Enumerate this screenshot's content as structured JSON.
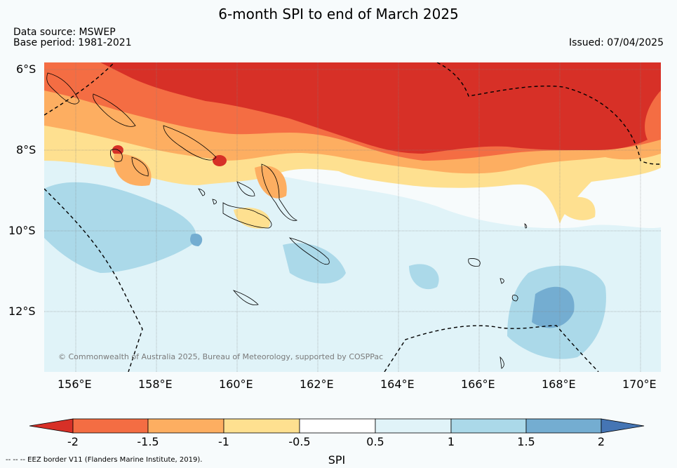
{
  "header": {
    "title": "6-month SPI to end of March 2025",
    "data_source": "Data source: MSWEP",
    "base_period": "Base period: 1981-2021",
    "issued": "Issued: 07/04/2025"
  },
  "map": {
    "lat_labels": [
      "6°S",
      "8°S",
      "10°S",
      "12°S"
    ],
    "lon_labels": [
      "156°E",
      "158°E",
      "160°E",
      "162°E",
      "164°E",
      "166°E",
      "168°E",
      "170°E"
    ],
    "copyright": "© Commonwealth of Australia 2025, Bureau of Meteorology, supported by COSPPac",
    "region": "Solomon Islands"
  },
  "colorbar": {
    "title": "SPI",
    "tick_labels": [
      "-2",
      "-1.5",
      "-1",
      "-0.5",
      "0.5",
      "1",
      "1.5",
      "2"
    ],
    "colors": [
      "#d73027",
      "#f46d43",
      "#fdae61",
      "#fee090",
      "#ffffff",
      "#e0f3f8",
      "#abd9e9",
      "#74add1",
      "#4575b4"
    ]
  },
  "footer": {
    "eez_note": "--  --  -- EEZ border V11 (Flanders Marine Institute, 2019)."
  }
}
